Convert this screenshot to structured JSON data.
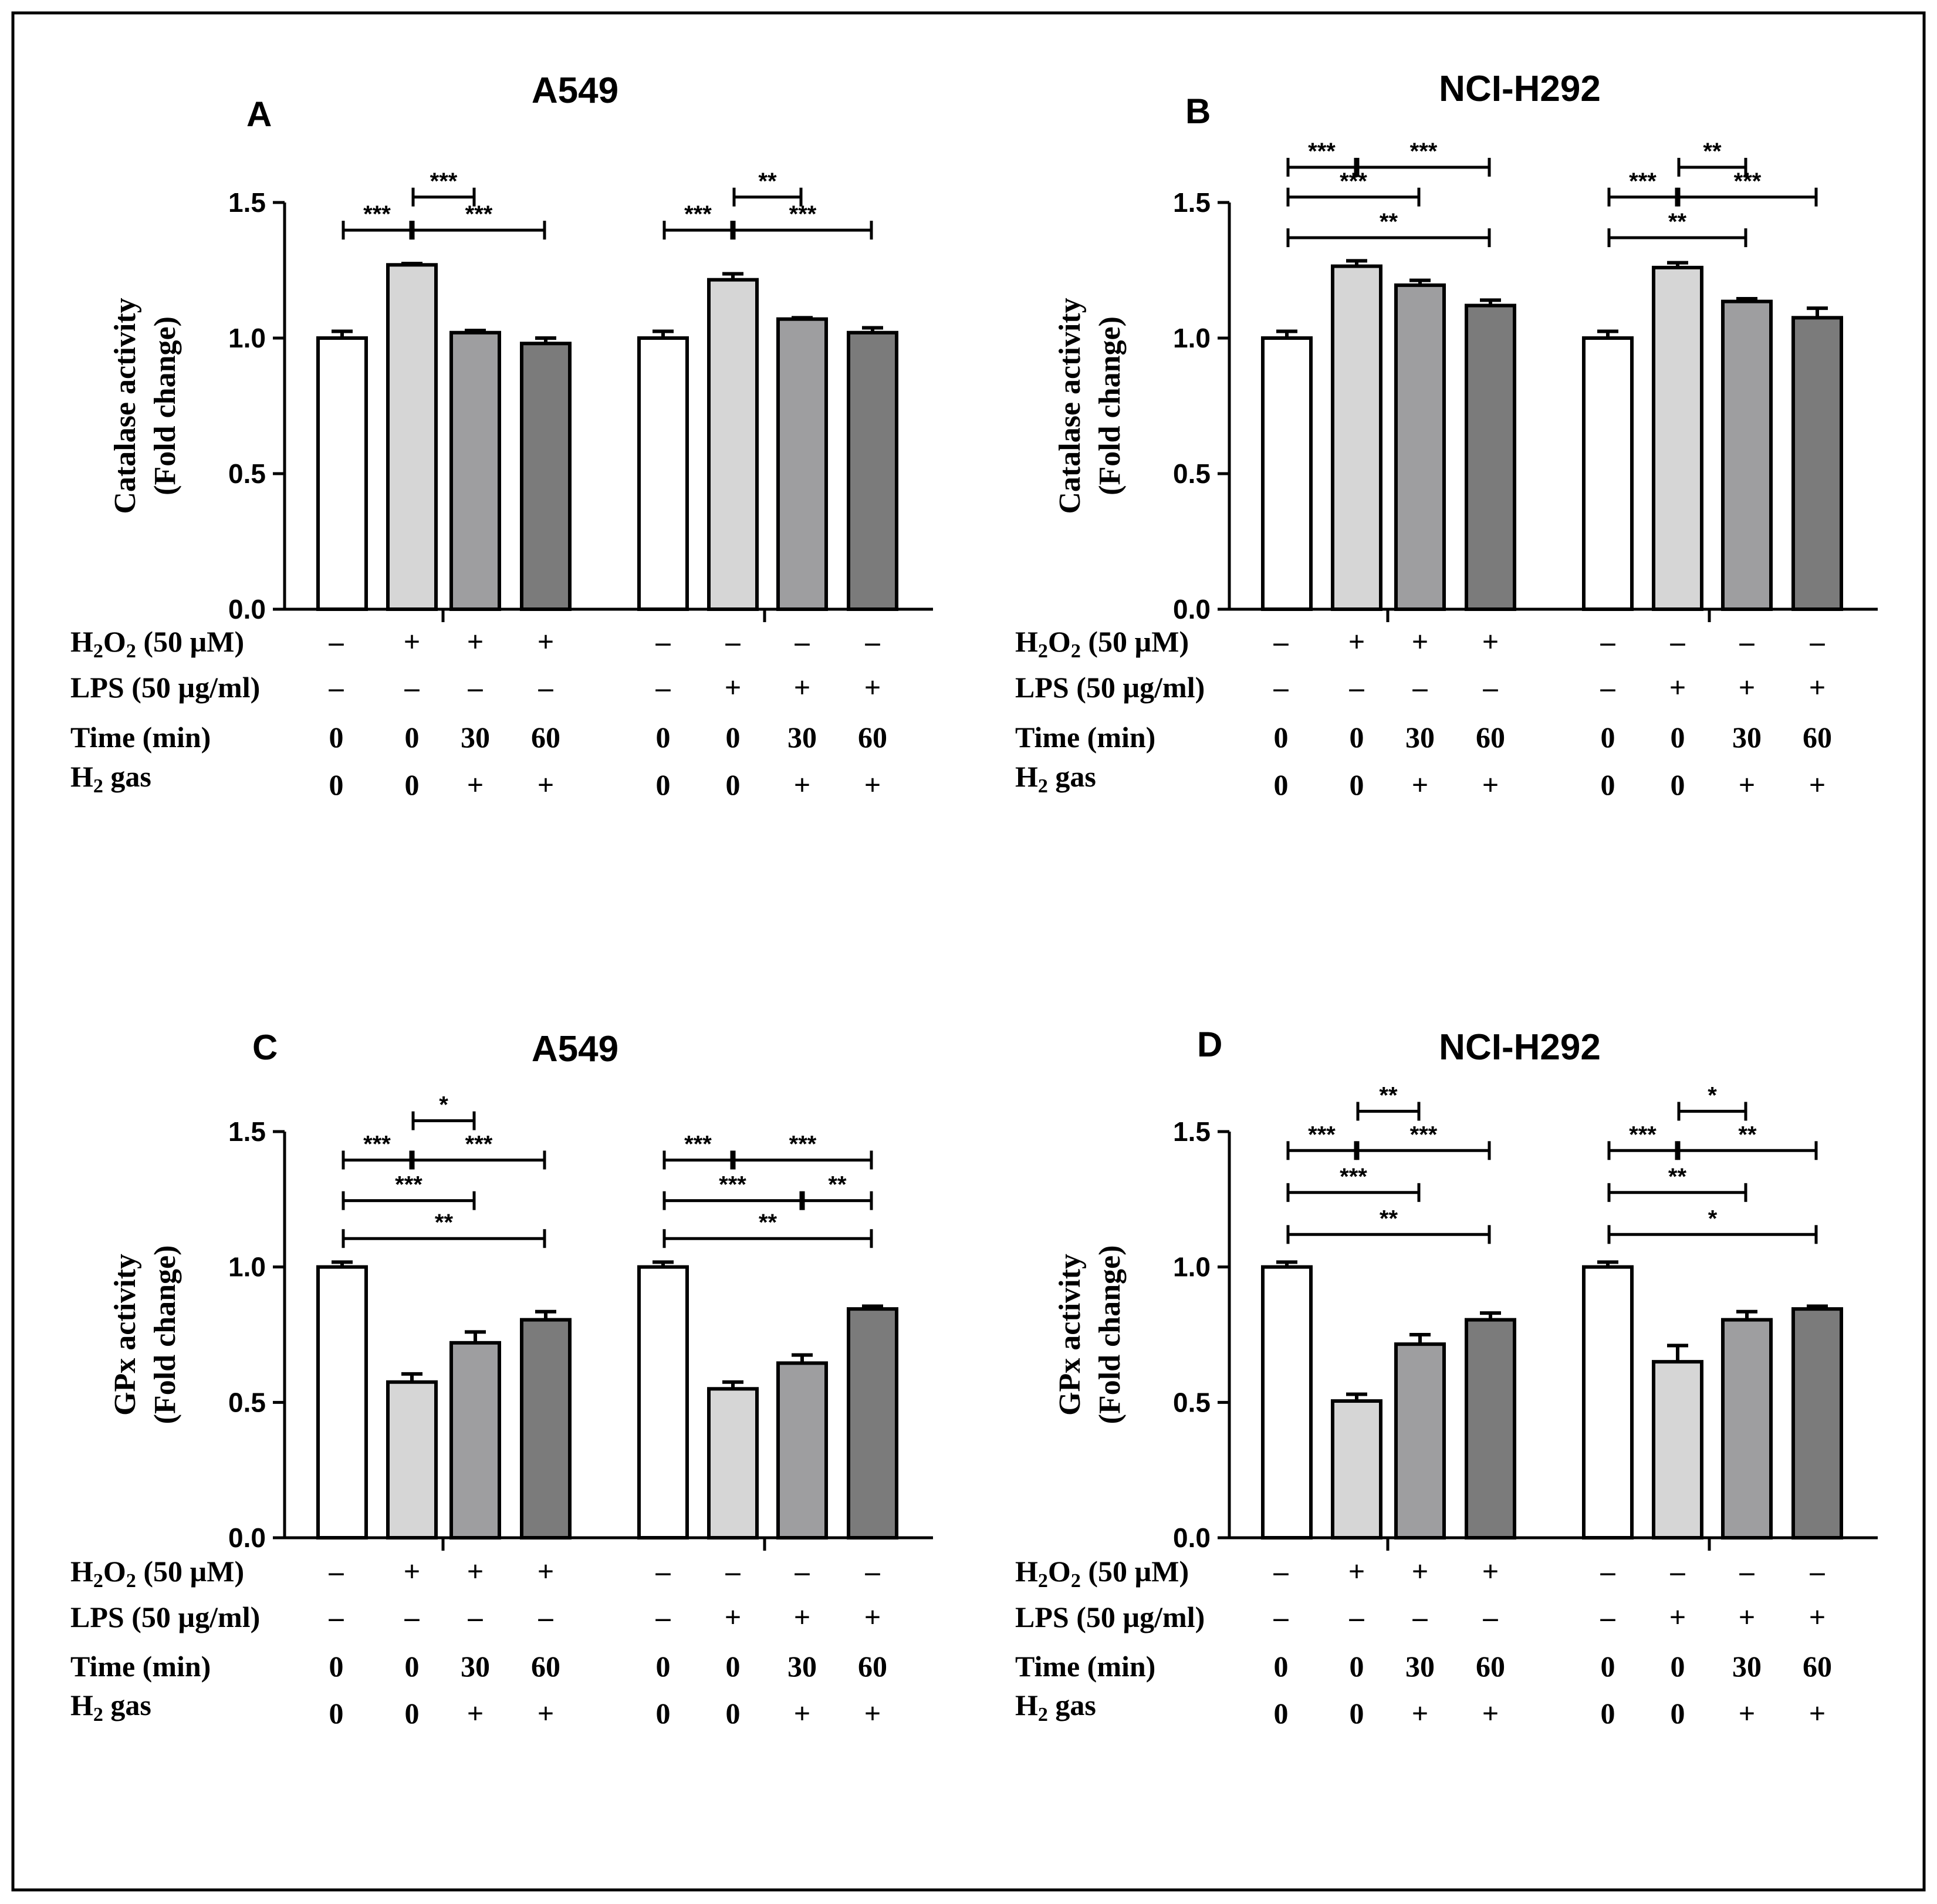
{
  "colors": {
    "control": "#ffffff",
    "treated": "#d6d6d6",
    "h2_30": "#9e9ea0",
    "h2_60": "#7b7b7b",
    "ink": "#000000"
  },
  "row_labels": {
    "h2o2": "H",
    "h2o2_sub": "2",
    "h2o2_o": "O",
    "h2o2_sub2": "2",
    "h2o2_rest": " (50 µM)",
    "lps": "LPS (50 µg/ml)",
    "time": "Time (min)",
    "h2gas": "H",
    "h2gas_sub": "2",
    "h2gas_rest": " gas"
  },
  "chart_data": [
    {
      "type": "bar",
      "panel": "A",
      "title": "A549",
      "ylabel_line1": "Catalase activity",
      "ylabel_line2": "(Fold change)",
      "ylim": [
        0,
        1.5
      ],
      "yticks": [
        "0.0",
        "0.5",
        "1.0",
        "1.5"
      ],
      "values": [
        1.0,
        1.27,
        1.02,
        0.98,
        1.0,
        1.215,
        1.07,
        1.02
      ],
      "errors": [
        0.025,
        0.005,
        0.008,
        0.02,
        0.025,
        0.022,
        0.005,
        0.018
      ],
      "conditions": {
        "h2o2": [
          "–",
          "+",
          "+",
          "+",
          "–",
          "–",
          "–",
          "–"
        ],
        "lps": [
          "–",
          "–",
          "–",
          "–",
          "–",
          "+",
          "+",
          "+"
        ],
        "time": [
          "0",
          "0",
          "30",
          "60",
          "0",
          "0",
          "30",
          "60"
        ],
        "h2gas": [
          "0",
          "0",
          "+",
          "+",
          "0",
          "0",
          "+",
          "+"
        ]
      },
      "significance": [
        {
          "from": 0,
          "to": 1,
          "level": 1.398,
          "label": "***"
        },
        {
          "from": 1,
          "to": 3,
          "level": 1.398,
          "label": "***"
        },
        {
          "from": 1,
          "to": 2,
          "level": 1.52,
          "label": "***"
        },
        {
          "from": 4,
          "to": 5,
          "level": 1.398,
          "label": "***"
        },
        {
          "from": 5,
          "to": 7,
          "level": 1.398,
          "label": "***"
        },
        {
          "from": 5,
          "to": 6,
          "level": 1.52,
          "label": "**"
        }
      ]
    },
    {
      "type": "bar",
      "panel": "B",
      "title": "NCI-H292",
      "ylabel_line1": "Catalase activity",
      "ylabel_line2": "(Fold change)",
      "ylim": [
        0,
        1.5
      ],
      "yticks": [
        "0.0",
        "0.5",
        "1.0",
        "1.5"
      ],
      "values": [
        1.0,
        1.265,
        1.195,
        1.12,
        1.0,
        1.26,
        1.135,
        1.075
      ],
      "errors": [
        0.025,
        0.02,
        0.018,
        0.02,
        0.025,
        0.018,
        0.01,
        0.035
      ],
      "conditions": {
        "h2o2": [
          "–",
          "+",
          "+",
          "+",
          "–",
          "–",
          "–",
          "–"
        ],
        "lps": [
          "–",
          "–",
          "–",
          "–",
          "–",
          "+",
          "+",
          "+"
        ],
        "time": [
          "0",
          "0",
          "30",
          "60",
          "0",
          "0",
          "30",
          "60"
        ],
        "h2gas": [
          "0",
          "0",
          "+",
          "+",
          "0",
          "0",
          "+",
          "+"
        ]
      },
      "significance": [
        {
          "from": 0,
          "to": 1,
          "level": 1.63,
          "label": "***"
        },
        {
          "from": 1,
          "to": 3,
          "level": 1.63,
          "label": "***"
        },
        {
          "from": 0,
          "to": 2,
          "level": 1.52,
          "label": "***"
        },
        {
          "from": 0,
          "to": 3,
          "level": 1.37,
          "label": "**"
        },
        {
          "from": 5,
          "to": 6,
          "level": 1.63,
          "label": "**"
        },
        {
          "from": 4,
          "to": 5,
          "level": 1.52,
          "label": "***"
        },
        {
          "from": 5,
          "to": 7,
          "level": 1.52,
          "label": "***"
        },
        {
          "from": 4,
          "to": 6,
          "level": 1.37,
          "label": "**"
        }
      ]
    },
    {
      "type": "bar",
      "panel": "C",
      "title": "A549",
      "ylabel_line1": "GPx activity",
      "ylabel_line2": "(Fold change)",
      "ylim": [
        0,
        1.5
      ],
      "yticks": [
        "0.0",
        "0.5",
        "1.0",
        "1.5"
      ],
      "values": [
        1.0,
        0.575,
        0.72,
        0.805,
        1.0,
        0.55,
        0.645,
        0.845
      ],
      "errors": [
        0.018,
        0.03,
        0.04,
        0.03,
        0.018,
        0.025,
        0.03,
        0.01
      ],
      "conditions": {
        "h2o2": [
          "–",
          "+",
          "+",
          "+",
          "–",
          "–",
          "–",
          "–"
        ],
        "lps": [
          "–",
          "–",
          "–",
          "–",
          "–",
          "+",
          "+",
          "+"
        ],
        "time": [
          "0",
          "0",
          "30",
          "60",
          "0",
          "0",
          "30",
          "60"
        ],
        "h2gas": [
          "0",
          "0",
          "+",
          "+",
          "0",
          "0",
          "+",
          "+"
        ]
      },
      "significance": [
        {
          "from": 1,
          "to": 2,
          "level": 1.54,
          "label": "*"
        },
        {
          "from": 0,
          "to": 1,
          "level": 1.395,
          "label": "***"
        },
        {
          "from": 1,
          "to": 3,
          "level": 1.395,
          "label": "***"
        },
        {
          "from": 0,
          "to": 2,
          "level": 1.245,
          "label": "***"
        },
        {
          "from": 0,
          "to": 3,
          "level": 1.105,
          "label": "**"
        },
        {
          "from": 4,
          "to": 5,
          "level": 1.395,
          "label": "***"
        },
        {
          "from": 5,
          "to": 7,
          "level": 1.395,
          "label": "***"
        },
        {
          "from": 4,
          "to": 6,
          "level": 1.245,
          "label": "***"
        },
        {
          "from": 6,
          "to": 7,
          "level": 1.245,
          "label": "**"
        },
        {
          "from": 4,
          "to": 7,
          "level": 1.105,
          "label": "**"
        }
      ]
    },
    {
      "type": "bar",
      "panel": "D",
      "title": "NCI-H292",
      "ylabel_line1": "GPx activity",
      "ylabel_line2": "(Fold change)",
      "ylim": [
        0,
        1.5
      ],
      "yticks": [
        "0.0",
        "0.5",
        "1.0",
        "1.5"
      ],
      "values": [
        1.0,
        0.505,
        0.715,
        0.805,
        1.0,
        0.65,
        0.805,
        0.845
      ],
      "errors": [
        0.018,
        0.025,
        0.035,
        0.025,
        0.018,
        0.06,
        0.03,
        0.01
      ],
      "conditions": {
        "h2o2": [
          "–",
          "+",
          "+",
          "+",
          "–",
          "–",
          "–",
          "–"
        ],
        "lps": [
          "–",
          "–",
          "–",
          "–",
          "–",
          "+",
          "+",
          "+"
        ],
        "time": [
          "0",
          "0",
          "30",
          "60",
          "0",
          "0",
          "30",
          "60"
        ],
        "h2gas": [
          "0",
          "0",
          "+",
          "+",
          "0",
          "0",
          "+",
          "+"
        ]
      },
      "significance": [
        {
          "from": 1,
          "to": 2,
          "level": 1.575,
          "label": "**"
        },
        {
          "from": 0,
          "to": 1,
          "level": 1.43,
          "label": "***"
        },
        {
          "from": 1,
          "to": 3,
          "level": 1.43,
          "label": "***"
        },
        {
          "from": 0,
          "to": 2,
          "level": 1.275,
          "label": "***"
        },
        {
          "from": 0,
          "to": 3,
          "level": 1.12,
          "label": "**"
        },
        {
          "from": 5,
          "to": 6,
          "level": 1.575,
          "label": "*"
        },
        {
          "from": 4,
          "to": 5,
          "level": 1.43,
          "label": "***"
        },
        {
          "from": 5,
          "to": 7,
          "level": 1.43,
          "label": "**"
        },
        {
          "from": 4,
          "to": 6,
          "level": 1.275,
          "label": "**"
        },
        {
          "from": 4,
          "to": 7,
          "level": 1.12,
          "label": "*"
        }
      ]
    }
  ]
}
